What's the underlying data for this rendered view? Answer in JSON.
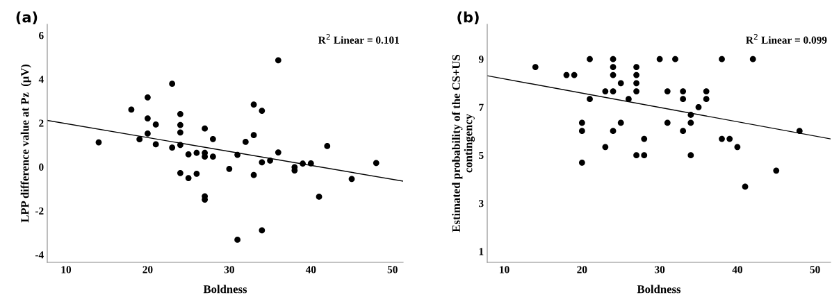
{
  "chart_data": [
    {
      "type": "scatter",
      "title": "(a)",
      "xlabel": "Boldness",
      "ylabel": "LPP difference value at Pz  (μV)",
      "annotations": [
        "R$^{2}$ Linear = 0.101"
      ],
      "xlim": [
        7.7,
        51.3
      ],
      "ylim": [
        -4.35,
        6.5
      ],
      "xticks": [
        10,
        20,
        30,
        40,
        50
      ],
      "yticks": [
        -4,
        -2,
        0,
        2,
        4,
        6
      ],
      "grid": false,
      "legend": false,
      "series": [
        {
          "marker": "circle",
          "color": "#000000",
          "x": [
            14,
            18,
            19,
            20,
            20,
            20,
            21,
            21,
            23,
            23,
            24,
            24,
            24,
            24,
            24,
            25,
            25,
            26,
            26,
            27,
            27,
            27,
            27,
            27,
            28,
            28,
            30,
            31,
            31,
            32,
            33,
            33,
            33,
            34,
            34,
            34,
            35,
            36,
            36,
            38,
            38,
            39,
            40,
            41,
            42,
            45,
            48
          ],
          "values": [
            1.12,
            2.61,
            1.26,
            3.17,
            2.21,
            1.52,
            1.93,
            1.03,
            3.79,
            0.88,
            2.41,
            1.91,
            1.57,
            1.0,
            -0.28,
            0.57,
            -0.51,
            0.64,
            -0.31,
            1.75,
            0.64,
            0.47,
            -1.34,
            -1.49,
            1.27,
            0.47,
            -0.09,
            0.55,
            -3.32,
            1.14,
            2.84,
            1.45,
            -0.37,
            2.56,
            0.21,
            -2.89,
            0.29,
            4.86,
            0.66,
            -0.01,
            -0.16,
            0.15,
            0.16,
            -1.36,
            0.95,
            -0.55,
            0.18
          ]
        },
        {
          "type": "line",
          "marker": "none",
          "color": "#000000",
          "x": [
            7.7,
            51.3
          ],
          "values": [
            2.12,
            -0.65
          ]
        }
      ]
    },
    {
      "type": "scatter",
      "title": "(b)",
      "xlabel": "Boldness",
      "ylabel": "Estimated probability of the CS+US\ncontingency",
      "annotations": [
        "R$^{2}$ Linear = 0.099"
      ],
      "xlim": [
        7.8,
        52.0
      ],
      "ylim": [
        0.54,
        10.45
      ],
      "xticks": [
        10,
        20,
        30,
        40,
        50
      ],
      "yticks": [
        1,
        3,
        5,
        7,
        9
      ],
      "grid": false,
      "legend": false,
      "series": [
        {
          "marker": "circle",
          "color": "#000000",
          "x": [
            14,
            18,
            19,
            20,
            20,
            20,
            21,
            21,
            23,
            23,
            24,
            24,
            24,
            24,
            24,
            25,
            25,
            26,
            27,
            27,
            27,
            27,
            27,
            28,
            28,
            30,
            31,
            31,
            32,
            33,
            33,
            33,
            34,
            34,
            34,
            35,
            36,
            36,
            38,
            38,
            39,
            40,
            41,
            42,
            45,
            48
          ],
          "values": [
            8.67,
            8.34,
            8.34,
            6.35,
            6.01,
            4.69,
            9,
            7.34,
            7.66,
            5.34,
            9,
            8.67,
            8.34,
            7.66,
            6.01,
            8.0,
            6.35,
            7.34,
            8.67,
            8.34,
            8.0,
            7.66,
            5.0,
            5.68,
            5.0,
            9,
            7.66,
            6.35,
            9,
            7.66,
            7.34,
            6.01,
            6.68,
            6.35,
            5.0,
            7.0,
            7.66,
            7.34,
            9,
            5.68,
            5.68,
            5.34,
            3.69,
            9,
            4.36,
            6.01
          ]
        },
        {
          "type": "line",
          "marker": "none",
          "color": "#000000",
          "x": [
            7.8,
            52.0
          ],
          "values": [
            8.31,
            5.68
          ]
        }
      ]
    }
  ]
}
